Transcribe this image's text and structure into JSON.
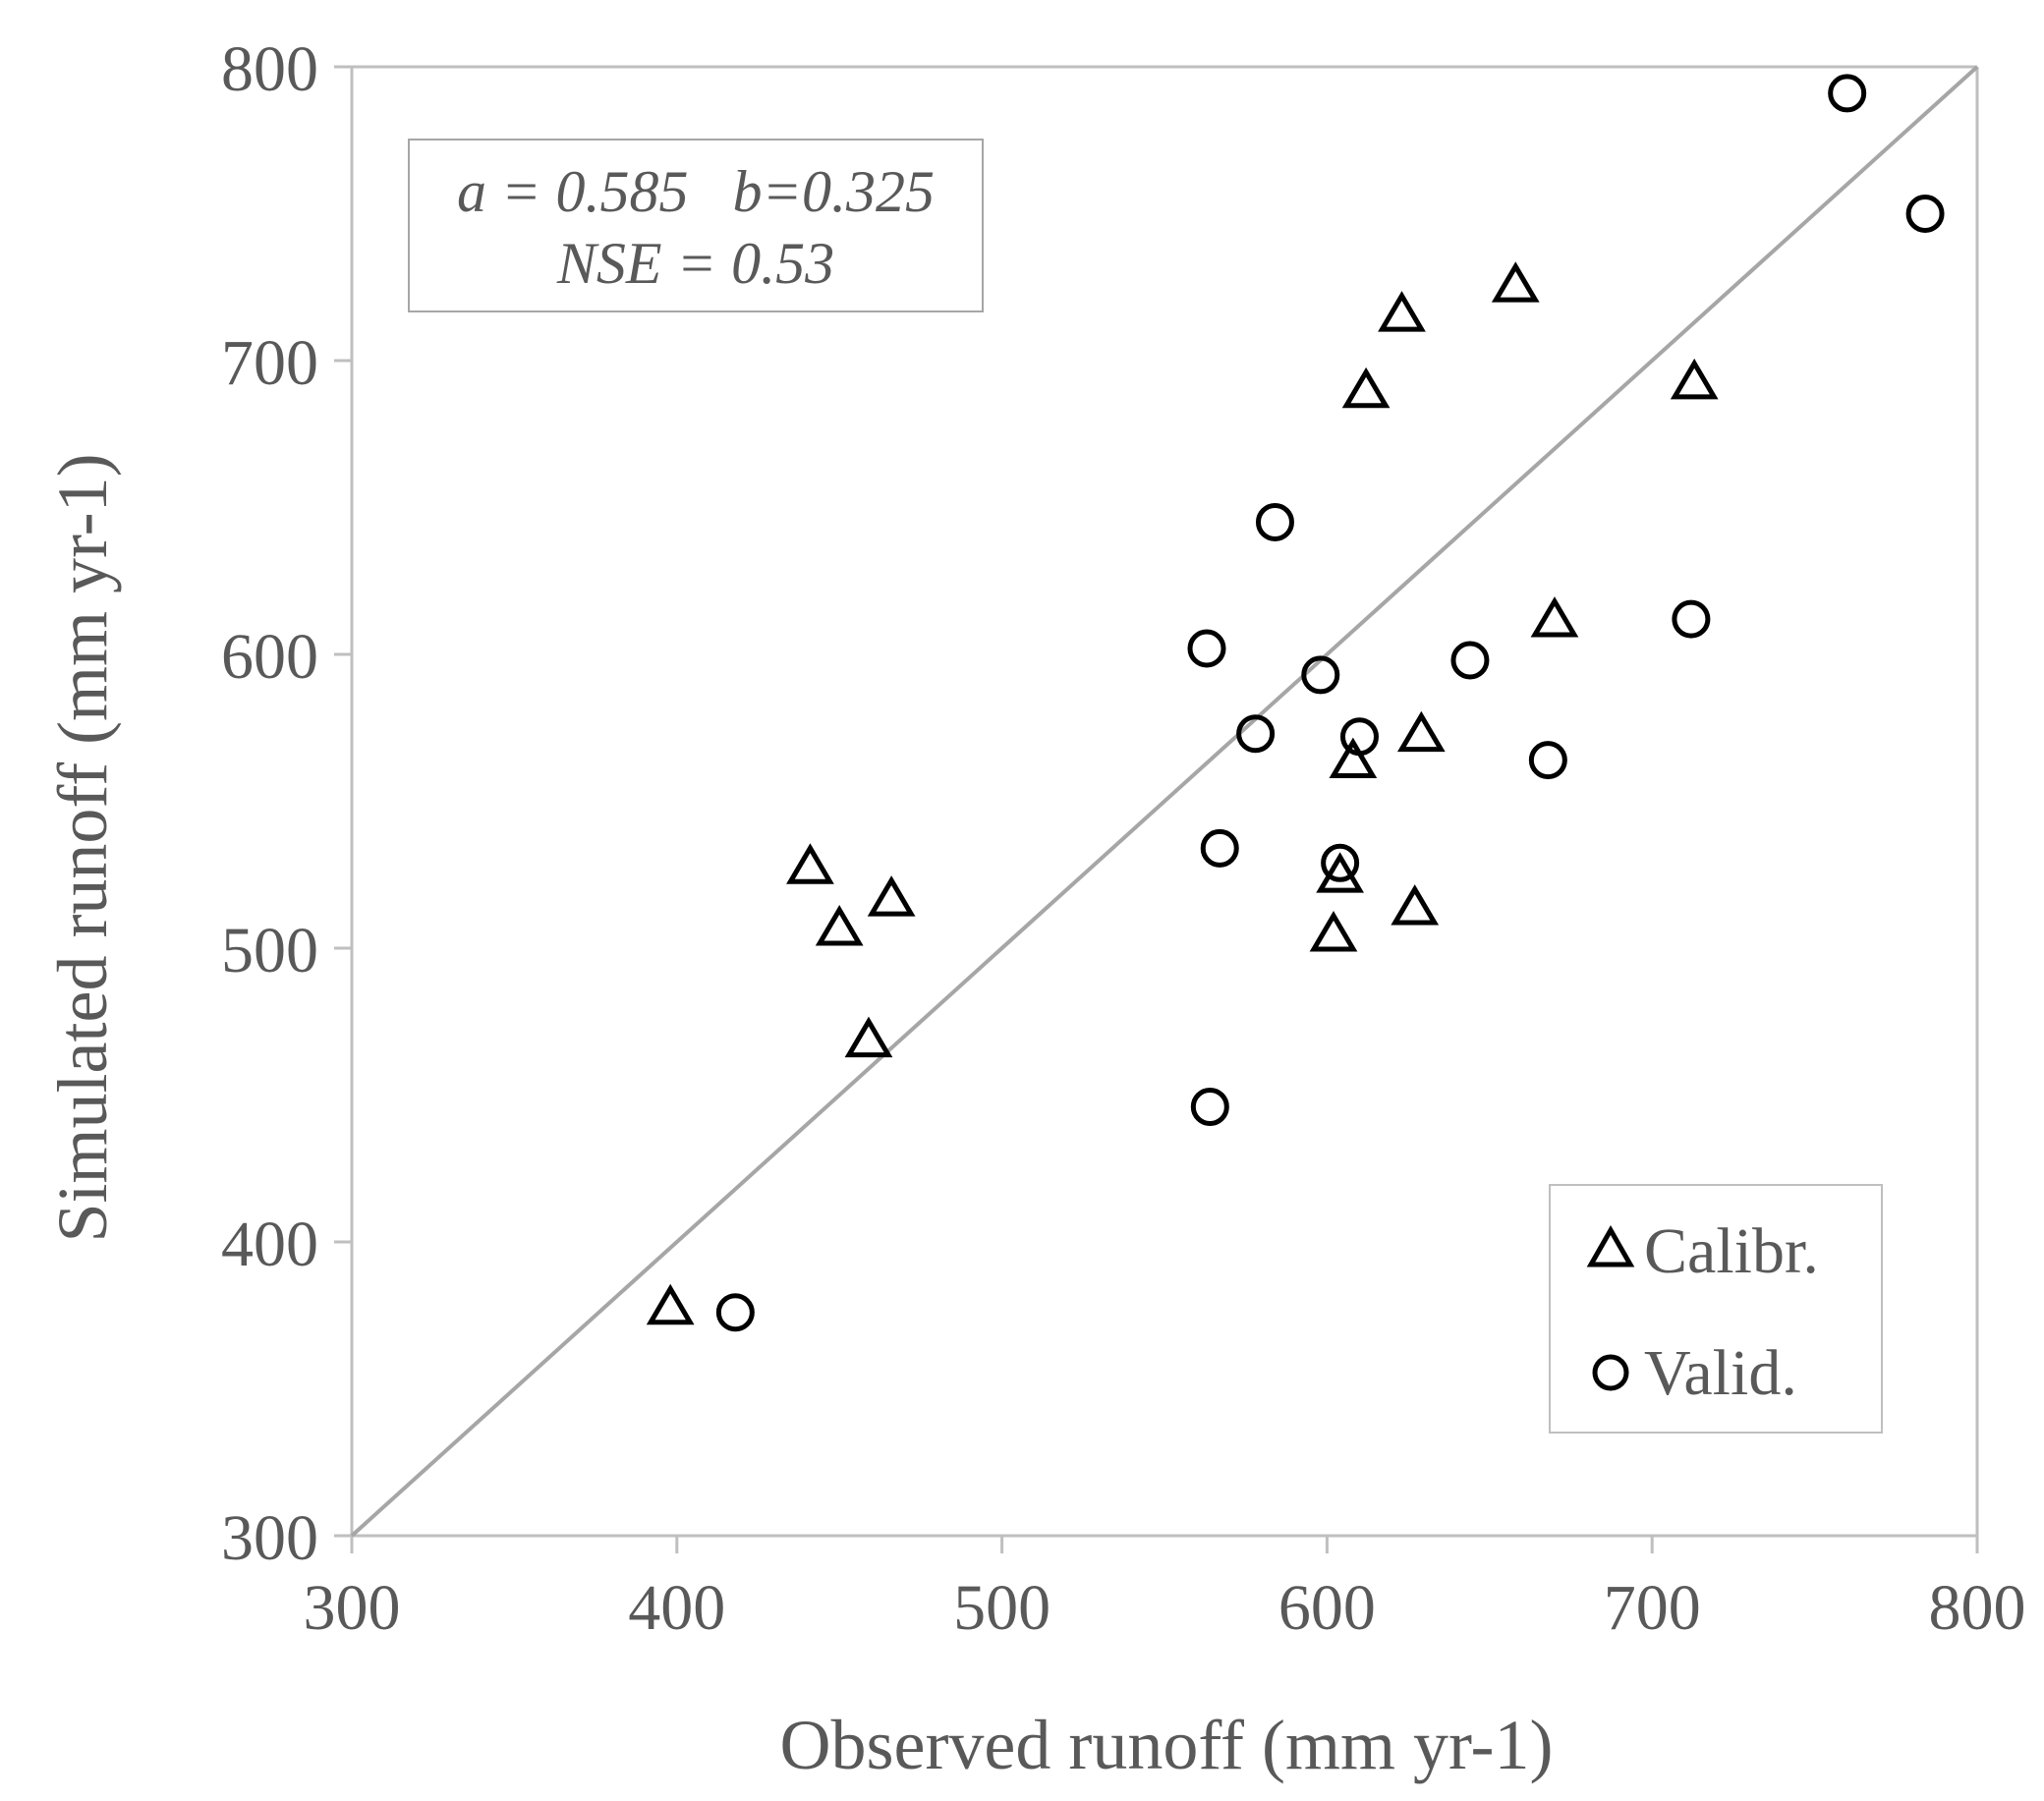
{
  "chart_data": {
    "type": "scatter",
    "xlabel": "Observed runoff (mm yr-1)",
    "ylabel": "Simulated runoff (mm yr-1)",
    "xlim": [
      300,
      800
    ],
    "ylim": [
      300,
      800
    ],
    "xticks": [
      300,
      400,
      500,
      600,
      700,
      800
    ],
    "yticks": [
      300,
      400,
      500,
      600,
      700,
      800
    ],
    "grid": false,
    "reference_line": {
      "type": "1:1",
      "from": [
        300,
        300
      ],
      "to": [
        800,
        800
      ]
    },
    "annotation": {
      "line1": "a = 0.585   b=0.325",
      "line2": "NSE = 0.53",
      "placement": "top-left"
    },
    "legend": {
      "placement": "bottom-right"
    },
    "series": [
      {
        "name": "Calibr.",
        "marker": "triangle",
        "points": [
          [
            398,
            377
          ],
          [
            441,
            527
          ],
          [
            450,
            506
          ],
          [
            466,
            516
          ],
          [
            459,
            468
          ],
          [
            602,
            504
          ],
          [
            604,
            524
          ],
          [
            608,
            563
          ],
          [
            612,
            689
          ],
          [
            623,
            715
          ],
          [
            627,
            513
          ],
          [
            629,
            572
          ],
          [
            658,
            725
          ],
          [
            670,
            611
          ],
          [
            713,
            692
          ]
        ]
      },
      {
        "name": "Valid.",
        "marker": "circle",
        "points": [
          [
            418,
            376
          ],
          [
            564,
            446
          ],
          [
            567,
            534
          ],
          [
            563,
            602
          ],
          [
            578,
            573
          ],
          [
            584,
            645
          ],
          [
            598,
            593
          ],
          [
            604,
            529
          ],
          [
            610,
            572
          ],
          [
            644,
            598
          ],
          [
            668,
            564
          ],
          [
            712,
            612
          ],
          [
            760,
            791
          ],
          [
            784,
            750
          ]
        ]
      }
    ],
    "colors": {
      "axis": "#bfbfbf",
      "text": "#595959",
      "marker": "#000000",
      "refline": "#a6a6a6"
    }
  }
}
